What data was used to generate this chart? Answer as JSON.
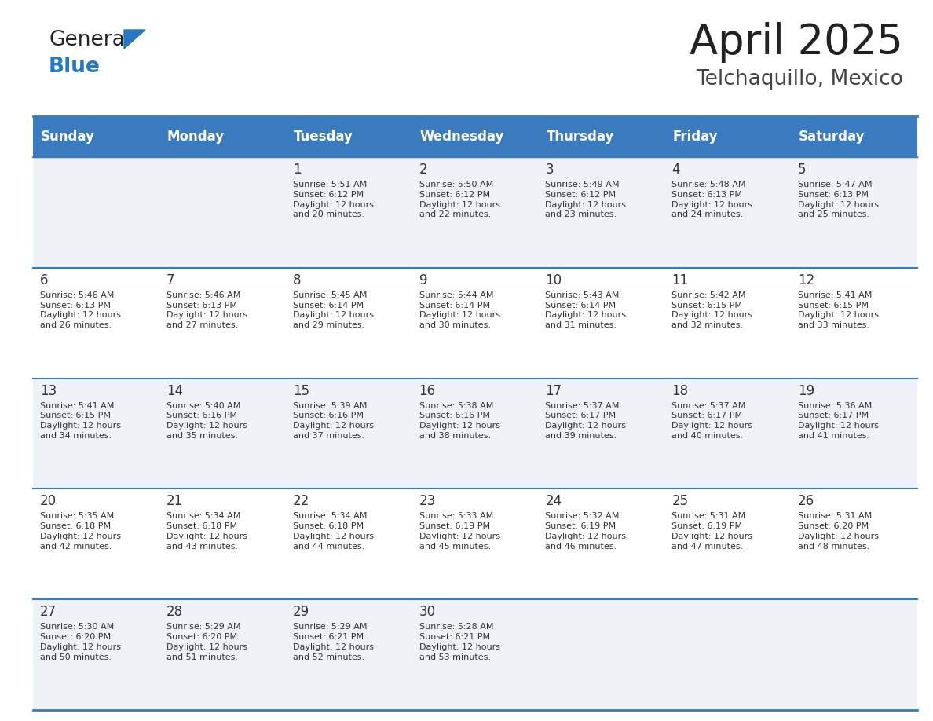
{
  "title": "April 2025",
  "subtitle": "Telchaquillo, Mexico",
  "header_bg_color": "#3a7abf",
  "header_text_color": "#ffffff",
  "days_of_week": [
    "Sunday",
    "Monday",
    "Tuesday",
    "Wednesday",
    "Thursday",
    "Friday",
    "Saturday"
  ],
  "row_bg_even": "#eef2f7",
  "row_bg_odd": "#ffffff",
  "cell_text_color": "#333333",
  "line_color": "#3a7abf",
  "logo_general_color": "#222222",
  "logo_blue_color": "#2878c0",
  "title_color": "#222222",
  "subtitle_color": "#444444",
  "calendar": [
    [
      {
        "day": "",
        "info": ""
      },
      {
        "day": "",
        "info": ""
      },
      {
        "day": "1",
        "info": "Sunrise: 5:51 AM\nSunset: 6:12 PM\nDaylight: 12 hours\nand 20 minutes."
      },
      {
        "day": "2",
        "info": "Sunrise: 5:50 AM\nSunset: 6:12 PM\nDaylight: 12 hours\nand 22 minutes."
      },
      {
        "day": "3",
        "info": "Sunrise: 5:49 AM\nSunset: 6:12 PM\nDaylight: 12 hours\nand 23 minutes."
      },
      {
        "day": "4",
        "info": "Sunrise: 5:48 AM\nSunset: 6:13 PM\nDaylight: 12 hours\nand 24 minutes."
      },
      {
        "day": "5",
        "info": "Sunrise: 5:47 AM\nSunset: 6:13 PM\nDaylight: 12 hours\nand 25 minutes."
      }
    ],
    [
      {
        "day": "6",
        "info": "Sunrise: 5:46 AM\nSunset: 6:13 PM\nDaylight: 12 hours\nand 26 minutes."
      },
      {
        "day": "7",
        "info": "Sunrise: 5:46 AM\nSunset: 6:13 PM\nDaylight: 12 hours\nand 27 minutes."
      },
      {
        "day": "8",
        "info": "Sunrise: 5:45 AM\nSunset: 6:14 PM\nDaylight: 12 hours\nand 29 minutes."
      },
      {
        "day": "9",
        "info": "Sunrise: 5:44 AM\nSunset: 6:14 PM\nDaylight: 12 hours\nand 30 minutes."
      },
      {
        "day": "10",
        "info": "Sunrise: 5:43 AM\nSunset: 6:14 PM\nDaylight: 12 hours\nand 31 minutes."
      },
      {
        "day": "11",
        "info": "Sunrise: 5:42 AM\nSunset: 6:15 PM\nDaylight: 12 hours\nand 32 minutes."
      },
      {
        "day": "12",
        "info": "Sunrise: 5:41 AM\nSunset: 6:15 PM\nDaylight: 12 hours\nand 33 minutes."
      }
    ],
    [
      {
        "day": "13",
        "info": "Sunrise: 5:41 AM\nSunset: 6:15 PM\nDaylight: 12 hours\nand 34 minutes."
      },
      {
        "day": "14",
        "info": "Sunrise: 5:40 AM\nSunset: 6:16 PM\nDaylight: 12 hours\nand 35 minutes."
      },
      {
        "day": "15",
        "info": "Sunrise: 5:39 AM\nSunset: 6:16 PM\nDaylight: 12 hours\nand 37 minutes."
      },
      {
        "day": "16",
        "info": "Sunrise: 5:38 AM\nSunset: 6:16 PM\nDaylight: 12 hours\nand 38 minutes."
      },
      {
        "day": "17",
        "info": "Sunrise: 5:37 AM\nSunset: 6:17 PM\nDaylight: 12 hours\nand 39 minutes."
      },
      {
        "day": "18",
        "info": "Sunrise: 5:37 AM\nSunset: 6:17 PM\nDaylight: 12 hours\nand 40 minutes."
      },
      {
        "day": "19",
        "info": "Sunrise: 5:36 AM\nSunset: 6:17 PM\nDaylight: 12 hours\nand 41 minutes."
      }
    ],
    [
      {
        "day": "20",
        "info": "Sunrise: 5:35 AM\nSunset: 6:18 PM\nDaylight: 12 hours\nand 42 minutes."
      },
      {
        "day": "21",
        "info": "Sunrise: 5:34 AM\nSunset: 6:18 PM\nDaylight: 12 hours\nand 43 minutes."
      },
      {
        "day": "22",
        "info": "Sunrise: 5:34 AM\nSunset: 6:18 PM\nDaylight: 12 hours\nand 44 minutes."
      },
      {
        "day": "23",
        "info": "Sunrise: 5:33 AM\nSunset: 6:19 PM\nDaylight: 12 hours\nand 45 minutes."
      },
      {
        "day": "24",
        "info": "Sunrise: 5:32 AM\nSunset: 6:19 PM\nDaylight: 12 hours\nand 46 minutes."
      },
      {
        "day": "25",
        "info": "Sunrise: 5:31 AM\nSunset: 6:19 PM\nDaylight: 12 hours\nand 47 minutes."
      },
      {
        "day": "26",
        "info": "Sunrise: 5:31 AM\nSunset: 6:20 PM\nDaylight: 12 hours\nand 48 minutes."
      }
    ],
    [
      {
        "day": "27",
        "info": "Sunrise: 5:30 AM\nSunset: 6:20 PM\nDaylight: 12 hours\nand 50 minutes."
      },
      {
        "day": "28",
        "info": "Sunrise: 5:29 AM\nSunset: 6:20 PM\nDaylight: 12 hours\nand 51 minutes."
      },
      {
        "day": "29",
        "info": "Sunrise: 5:29 AM\nSunset: 6:21 PM\nDaylight: 12 hours\nand 52 minutes."
      },
      {
        "day": "30",
        "info": "Sunrise: 5:28 AM\nSunset: 6:21 PM\nDaylight: 12 hours\nand 53 minutes."
      },
      {
        "day": "",
        "info": ""
      },
      {
        "day": "",
        "info": ""
      },
      {
        "day": "",
        "info": ""
      }
    ]
  ]
}
